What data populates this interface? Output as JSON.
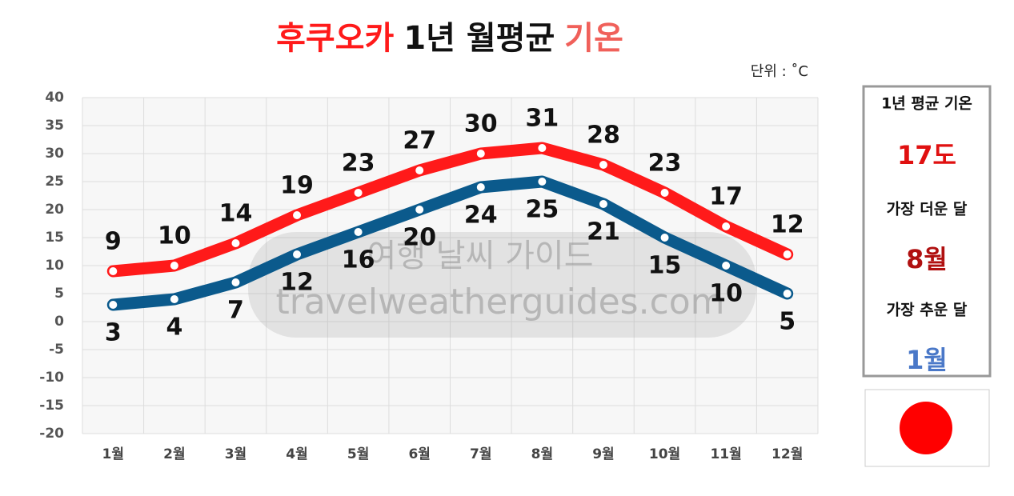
{
  "chart_data": {
    "type": "line",
    "title_parts": [
      {
        "text": "후쿠오카",
        "color": "#ff1a1a"
      },
      {
        "text": "1년 월평균",
        "color": "#111111"
      },
      {
        "text": "기온",
        "color": "#f0605a"
      }
    ],
    "unit": "단위 : ˚C",
    "categories": [
      "1월",
      "2월",
      "3월",
      "4월",
      "5월",
      "6월",
      "7월",
      "8월",
      "9월",
      "10월",
      "11월",
      "12월"
    ],
    "series": [
      {
        "color": "#ff1a1a",
        "values": [
          9,
          10,
          14,
          19,
          23,
          27,
          30,
          31,
          28,
          23,
          17,
          12
        ]
      },
      {
        "color": "#0b5a8c",
        "values": [
          3,
          4,
          7,
          12,
          16,
          20,
          24,
          25,
          21,
          15,
          10,
          5
        ]
      }
    ],
    "ylim": [
      -20,
      40
    ],
    "yticks": [
      -20,
      -15,
      -10,
      -5,
      0,
      5,
      10,
      15,
      20,
      25,
      30,
      35,
      40
    ],
    "grid": true
  },
  "watermark": {
    "line1": "여행 날씨 가이드",
    "line2": "travelweatherguides.com"
  },
  "side_panel": {
    "items": [
      {
        "text": "1년 평균 기온",
        "color": "#111111"
      },
      {
        "text": "17도",
        "color": "#e01010"
      },
      {
        "text": "가장 더운 달",
        "color": "#111111"
      },
      {
        "text": "8월",
        "color": "#b01010"
      },
      {
        "text": "가장 추운 달",
        "color": "#111111"
      },
      {
        "text": "1월",
        "color": "#4a78c8"
      }
    ]
  }
}
